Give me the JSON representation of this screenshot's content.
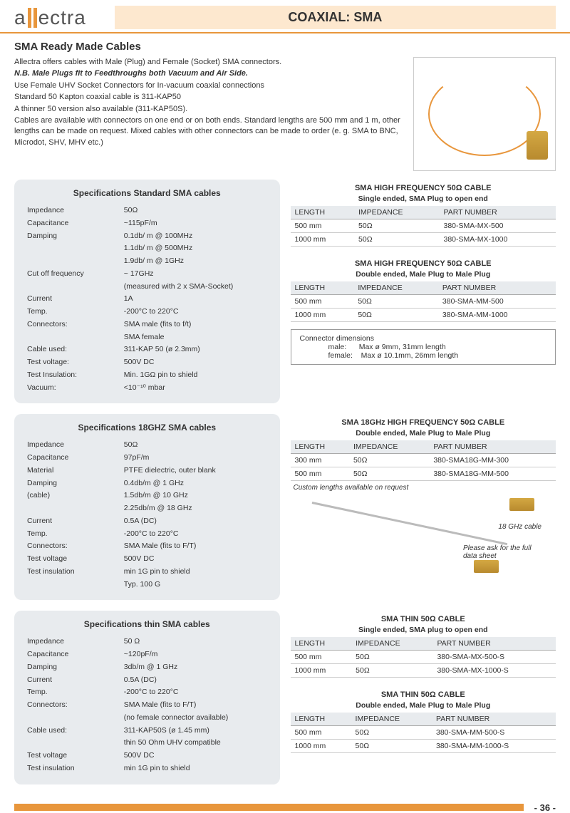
{
  "header": {
    "logo_left": "a",
    "logo_right": "ectra",
    "title": "COAXIAL: SMA"
  },
  "section_title": "SMA Ready Made Cables",
  "intro": {
    "line1": "Allectra offers cables with Male (Plug) and Female (Socket) SMA connectors.",
    "line2": "N.B. Male Plugs fit to Feedthroughs both Vacuum and Air Side.",
    "line3": "Use Female UHV Socket Connectors for In-vacuum coaxial connections",
    "line4": "Standard 50 Kapton coaxial cable is 311-KAP50",
    "line5": "A thinner 50 version also available (311-KAP50S).",
    "line6": "Cables are available with connectors on one end or on both ends. Standard lengths are 500 mm and 1 m, other lengths can be made on request. Mixed cables with other connectors can be made to order (e. g. SMA to BNC, Microdot, SHV, MHV etc.)"
  },
  "spec_std": {
    "title": "Specifications Standard SMA cables",
    "rows": [
      {
        "k": "Impedance",
        "v": "50Ω"
      },
      {
        "k": "Capacitance",
        "v": "~115pF/m"
      },
      {
        "k": "Damping",
        "v": "0.1db/ m @ 100MHz"
      },
      {
        "k": "",
        "v": "1.1db/ m @ 500MHz"
      },
      {
        "k": "",
        "v": "1.9db/ m @    1GHz"
      },
      {
        "k": "Cut off frequency",
        "v": "~ 17GHz"
      },
      {
        "k": "",
        "v": "(measured with 2 x SMA-Socket)"
      },
      {
        "k": "Current",
        "v": "1A"
      },
      {
        "k": "Temp.",
        "v": "-200°C to 220°C"
      },
      {
        "k": "Connectors:",
        "v": "SMA male (fits to f/t)"
      },
      {
        "k": "",
        "v": "SMA female"
      },
      {
        "k": "Cable used:",
        "v": "311-KAP 50 (ø 2.3mm)"
      },
      {
        "k": "Test voltage:",
        "v": "500V DC"
      },
      {
        "k": "Test Insulation:",
        "v": "Min. 1GΩ pin to shield"
      },
      {
        "k": "Vacuum:",
        "v": "<10⁻¹⁰ mbar"
      }
    ]
  },
  "spec_18": {
    "title": "Specifications 18GHZ SMA cables",
    "rows": [
      {
        "k": "Impedance",
        "v": "50Ω"
      },
      {
        "k": "Capacitance",
        "v": "97pF/m"
      },
      {
        "k": "Material",
        "v": "PTFE dielectric, outer blank"
      },
      {
        "k": "Damping",
        "v": "0.4db/m  @  1 GHz"
      },
      {
        "k": "(cable)",
        "v": "1.5db/m @ 10 GHz"
      },
      {
        "k": "",
        "v": "2.25db/m @ 18 GHz"
      },
      {
        "k": "Current",
        "v": "0.5A (DC)"
      },
      {
        "k": "Temp.",
        "v": "-200°C to 220°C"
      },
      {
        "k": "Connectors:",
        "v": "SMA Male (fits to F/T)"
      },
      {
        "k": "Test voltage",
        "v": "500V DC"
      },
      {
        "k": "Test insulation",
        "v": "min 1G pin to shield"
      },
      {
        "k": "",
        "v": "Typ. 100 G"
      }
    ]
  },
  "spec_thin": {
    "title": "Specifications  thin SMA cables",
    "rows": [
      {
        "k": "Impedance",
        "v": "50 Ω"
      },
      {
        "k": "Capacitance",
        "v": "~120pF/m"
      },
      {
        "k": "Damping",
        "v": "3db/m @ 1 GHz"
      },
      {
        "k": "Current",
        "v": "0.5A (DC)"
      },
      {
        "k": "Temp.",
        "v": "-200°C to 220°C"
      },
      {
        "k": "Connectors:",
        "v": "SMA Male (fits to F/T)"
      },
      {
        "k": "",
        "v": "(no female connector available)"
      },
      {
        "k": "Cable used:",
        "v": "311-KAP50S (ø 1.45 mm)"
      },
      {
        "k": "",
        "v": "thin 50 Ohm UHV compatible"
      },
      {
        "k": "Test voltage",
        "v": "500V DC"
      },
      {
        "k": "Test insulation",
        "v": "min 1G pin to shield"
      }
    ]
  },
  "table_cols": {
    "c1": "LENGTH",
    "c2": "IMPEDANCE",
    "c3": "PART NUMBER"
  },
  "hf_single": {
    "title": "SMA HIGH FREQUENCY 50Ω CABLE",
    "sub": "Single ended, SMA Plug to open end",
    "rows": [
      {
        "l": "500 mm",
        "i": "50Ω",
        "p": "380-SMA-MX-500"
      },
      {
        "l": "1000 mm",
        "i": "50Ω",
        "p": "380-SMA-MX-1000"
      }
    ]
  },
  "hf_double": {
    "title": "SMA HIGH FREQUENCY 50Ω CABLE",
    "sub": "Double ended,  Male Plug to Male Plug",
    "rows": [
      {
        "l": "500 mm",
        "i": "50Ω",
        "p": "380-SMA-MM-500"
      },
      {
        "l": "1000 mm",
        "i": "50Ω",
        "p": "380-SMA-MM-1000"
      }
    ]
  },
  "conn_dims": {
    "title": "Connector dimensions",
    "male_label": "male:",
    "male_val": "Max ø    9mm, 31mm length",
    "female_label": "female:",
    "female_val": "Max ø 10.1mm, 26mm length"
  },
  "ghz18": {
    "title": "SMA 18GHz HIGH FREQUENCY 50Ω CABLE",
    "sub": "Double ended,  Male Plug to Male Plug",
    "rows": [
      {
        "l": "300 mm",
        "i": "50Ω",
        "p": "380-SMA18G-MM-300"
      },
      {
        "l": "500 mm",
        "i": "50Ω",
        "p": "380-SMA18G-MM-500"
      }
    ],
    "note": "Custom lengths available on request",
    "img_label": "18 GHz cable",
    "img_note": "Please ask for the full data sheet"
  },
  "thin_single": {
    "title": "SMA THIN 50Ω CABLE",
    "sub": "Single ended, SMA plug to open end",
    "rows": [
      {
        "l": "500 mm",
        "i": "50Ω",
        "p": "380-SMA-MX-500-S"
      },
      {
        "l": "1000 mm",
        "i": "50Ω",
        "p": "380-SMA-MX-1000-S"
      }
    ]
  },
  "thin_double": {
    "title": "SMA THIN 50Ω CABLE",
    "sub": "Double ended,  Male Plug to Male Plug",
    "rows": [
      {
        "l": "500 mm",
        "i": "50Ω",
        "p": "380-SMA-MM-500-S"
      },
      {
        "l": "1000 mm",
        "i": "50Ω",
        "p": "380-SMA-MM-1000-S"
      }
    ]
  },
  "page": "- 36 -"
}
